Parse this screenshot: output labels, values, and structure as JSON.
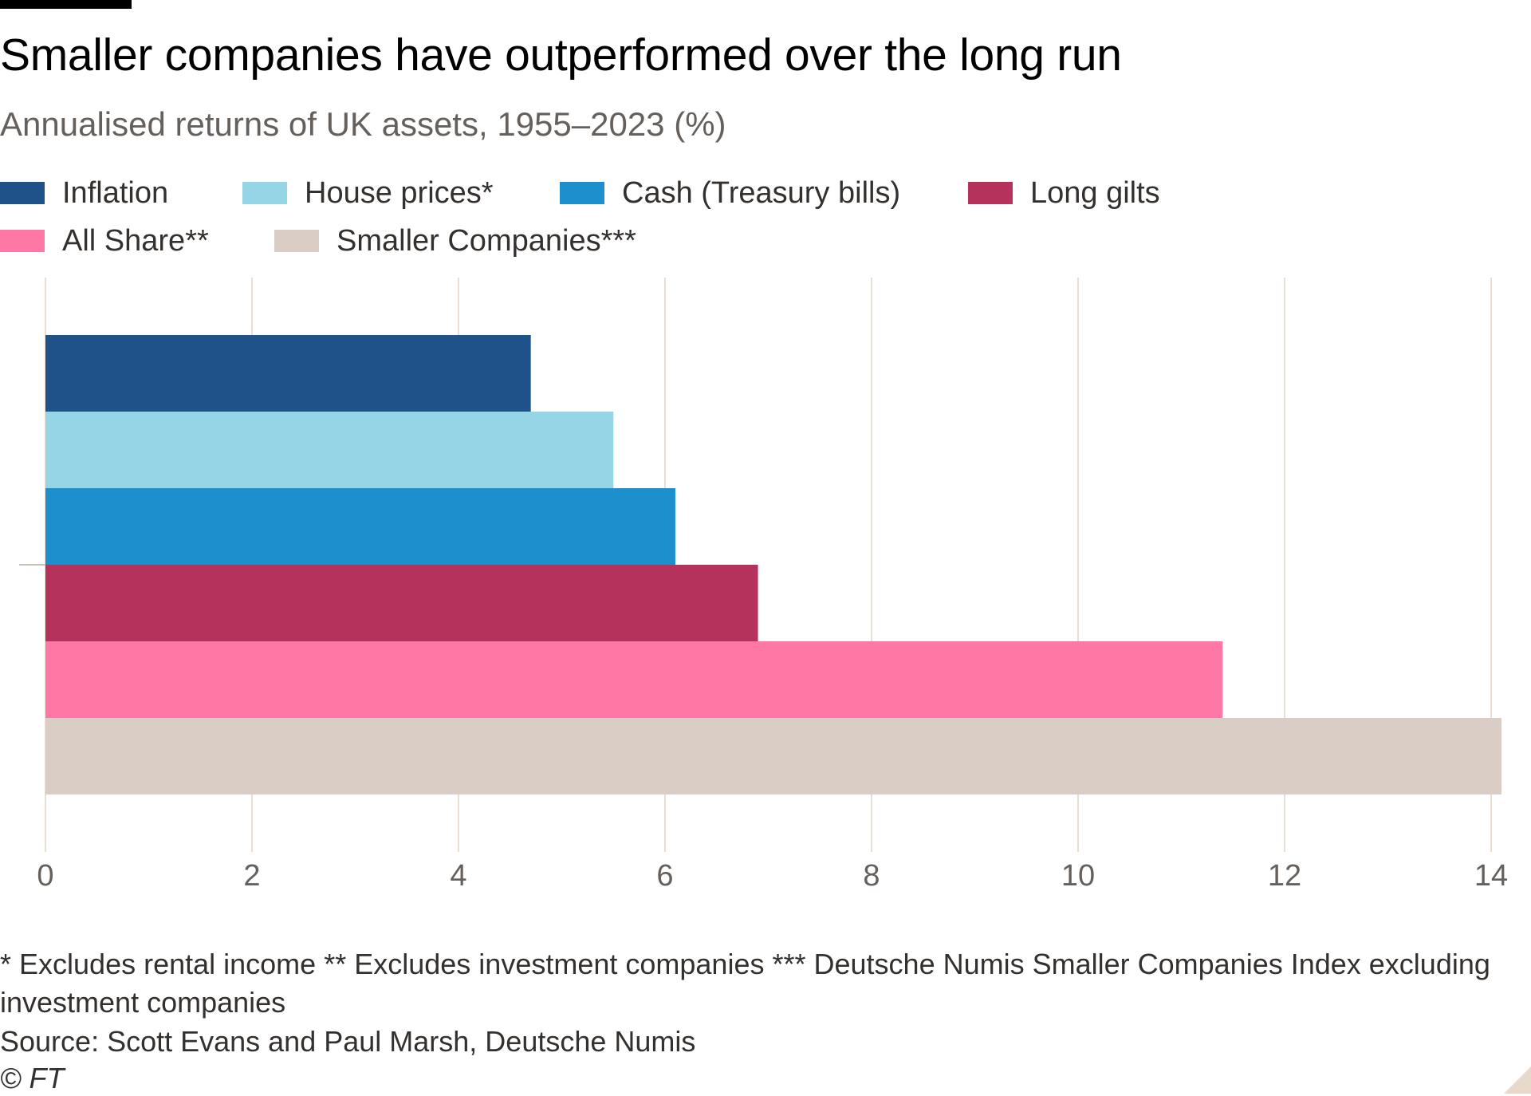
{
  "title": "Smaller companies have outperformed over the long run",
  "subtitle": "Annualised returns of UK assets, 1955–2023 (%)",
  "legend": [
    {
      "label": "Inflation",
      "color": "#1f5289"
    },
    {
      "label": "House prices*",
      "color": "#96d5e6"
    },
    {
      "label": "Cash (Treasury bills)",
      "color": "#1e8fcd"
    },
    {
      "label": "Long gilts",
      "color": "#b5325d"
    },
    {
      "label": "All Share**",
      "color": "#ff77a5"
    },
    {
      "label": "Smaller Companies***",
      "color": "#d9cdc5"
    }
  ],
  "chart_data": {
    "type": "bar",
    "orientation": "horizontal",
    "title": "Smaller companies have outperformed over the long run",
    "subtitle": "Annualised returns of UK assets, 1955–2023 (%)",
    "xlim": [
      0,
      14
    ],
    "xticks": [
      "0",
      "2",
      "4",
      "6",
      "8",
      "10",
      "12",
      "14"
    ],
    "grid": "vertical",
    "legend_position": "top",
    "series": [
      {
        "name": "Inflation",
        "values": [
          4.7
        ]
      },
      {
        "name": "House prices*",
        "values": [
          5.5
        ]
      },
      {
        "name": "Cash (Treasury bills)",
        "values": [
          6.1
        ]
      },
      {
        "name": "Long gilts",
        "values": [
          6.9
        ]
      },
      {
        "name": "All Share**",
        "values": [
          11.4
        ]
      },
      {
        "name": "Smaller Companies***",
        "values": [
          14.1
        ]
      }
    ]
  },
  "footnote": "* Excludes rental income ** Excludes investment companies *** Deutsche Numis Smaller Companies Index excluding investment companies",
  "source": "Source: Scott Evans and Paul Marsh, Deutsche Numis",
  "copyright": "© FT"
}
